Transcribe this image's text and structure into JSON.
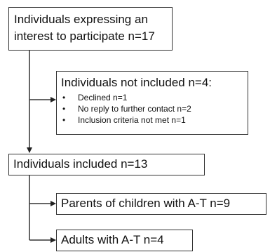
{
  "boxes": {
    "interested": {
      "line1": "Individuals expressing an",
      "line2": "interest to participate n=17"
    },
    "not_included": {
      "title": "Individuals not included n=4:",
      "reasons": [
        "Declined n=1",
        "No reply to further contact n=2",
        "Inclusion criteria not met n=1"
      ]
    },
    "included": "Individuals included n=13",
    "parents": "Parents of children with A-T n=9",
    "adults": "Adults with A-T n=4"
  }
}
